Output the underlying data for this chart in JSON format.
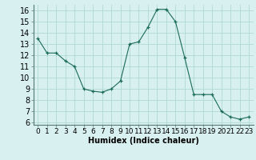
{
  "x": [
    0,
    1,
    2,
    3,
    4,
    5,
    6,
    7,
    8,
    9,
    10,
    11,
    12,
    13,
    14,
    15,
    16,
    17,
    18,
    19,
    20,
    21,
    22,
    23
  ],
  "y": [
    13.5,
    12.2,
    12.2,
    11.5,
    11.0,
    9.0,
    8.8,
    8.7,
    9.0,
    9.7,
    13.0,
    13.2,
    14.5,
    16.1,
    16.1,
    15.0,
    11.8,
    8.5,
    8.5,
    8.5,
    7.0,
    6.5,
    6.3,
    6.5
  ],
  "line_color": "#1a6b5a",
  "marker": "+",
  "marker_color": "#1a6b5a",
  "bg_color": "#d8f0f0",
  "grid_color": "#b0d8d8",
  "xlabel": "Humidex (Indice chaleur)",
  "xlabel_fontsize": 7,
  "ylabel_fontsize": 7,
  "tick_fontsize": 6.5,
  "ylim": [
    5.8,
    16.5
  ],
  "xlim": [
    -0.5,
    23.5
  ],
  "yticks": [
    6,
    7,
    8,
    9,
    10,
    11,
    12,
    13,
    14,
    15,
    16
  ],
  "xticks": [
    0,
    1,
    2,
    3,
    4,
    5,
    6,
    7,
    8,
    9,
    10,
    11,
    12,
    13,
    14,
    15,
    16,
    17,
    18,
    19,
    20,
    21,
    22,
    23
  ],
  "xtick_labels": [
    "0",
    "1",
    "2",
    "3",
    "4",
    "5",
    "6",
    "7",
    "8",
    "9",
    "10",
    "11",
    "12",
    "13",
    "14",
    "15",
    "16",
    "17",
    "18",
    "19",
    "20",
    "21",
    "22",
    "23"
  ]
}
